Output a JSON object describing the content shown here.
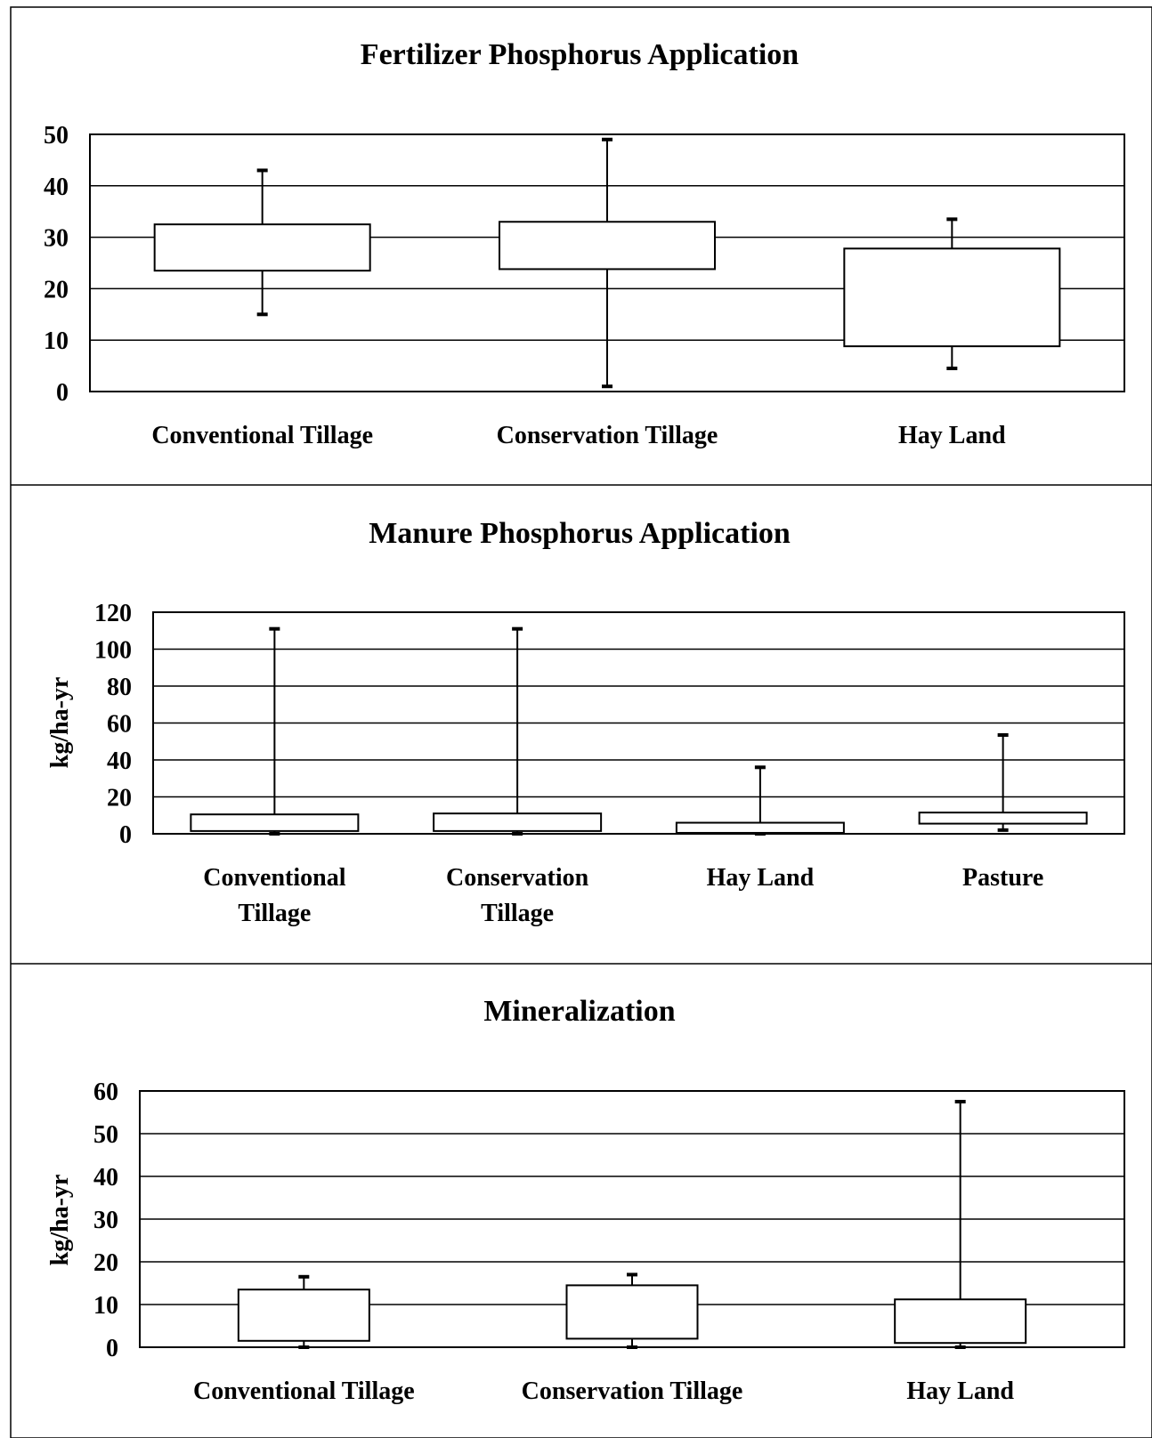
{
  "chart_data": [
    {
      "type": "box",
      "title": "Fertilizer Phosphorus Application",
      "ylabel": "",
      "ylim": [
        0,
        50
      ],
      "yticks": [
        0,
        10,
        20,
        30,
        40,
        50
      ],
      "grid": true,
      "categories": [
        {
          "label": [
            "Conventional Tillage"
          ],
          "whisker_low": 15,
          "q1": 23.5,
          "q3": 32.5,
          "whisker_high": 43
        },
        {
          "label": [
            "Conservation Tillage"
          ],
          "whisker_low": 1,
          "q1": 23.8,
          "q3": 33,
          "whisker_high": 49
        },
        {
          "label": [
            "Hay Land"
          ],
          "whisker_low": 4.5,
          "q1": 8.8,
          "q3": 27.8,
          "whisker_high": 33.5
        }
      ]
    },
    {
      "type": "box",
      "title": "Manure Phosphorus Application",
      "ylabel": "kg/ha-yr",
      "ylim": [
        0,
        120
      ],
      "yticks": [
        0,
        20,
        40,
        60,
        80,
        100,
        120
      ],
      "grid": true,
      "categories": [
        {
          "label": [
            "Conventional",
            "Tillage"
          ],
          "whisker_low": 0,
          "q1": 1.5,
          "q3": 10.5,
          "whisker_high": 111
        },
        {
          "label": [
            "Conservation",
            "Tillage"
          ],
          "whisker_low": 0,
          "q1": 1.5,
          "q3": 11,
          "whisker_high": 111
        },
        {
          "label": [
            "Hay Land"
          ],
          "whisker_low": 0,
          "q1": 0.5,
          "q3": 6,
          "whisker_high": 36
        },
        {
          "label": [
            "Pasture"
          ],
          "whisker_low": 2,
          "q1": 5.5,
          "q3": 11.5,
          "whisker_high": 53.5
        }
      ]
    },
    {
      "type": "box",
      "title": "Mineralization",
      "ylabel": "kg/ha-yr",
      "ylim": [
        0,
        60
      ],
      "yticks": [
        0,
        10,
        20,
        30,
        40,
        50,
        60
      ],
      "grid": true,
      "categories": [
        {
          "label": [
            "Conventional Tillage"
          ],
          "whisker_low": 0,
          "q1": 1.5,
          "q3": 13.5,
          "whisker_high": 16.5
        },
        {
          "label": [
            "Conservation Tillage"
          ],
          "whisker_low": 0,
          "q1": 2,
          "q3": 14.5,
          "whisker_high": 17
        },
        {
          "label": [
            "Hay Land"
          ],
          "whisker_low": 0,
          "q1": 1,
          "q3": 11.2,
          "whisker_high": 57.5
        }
      ]
    }
  ]
}
